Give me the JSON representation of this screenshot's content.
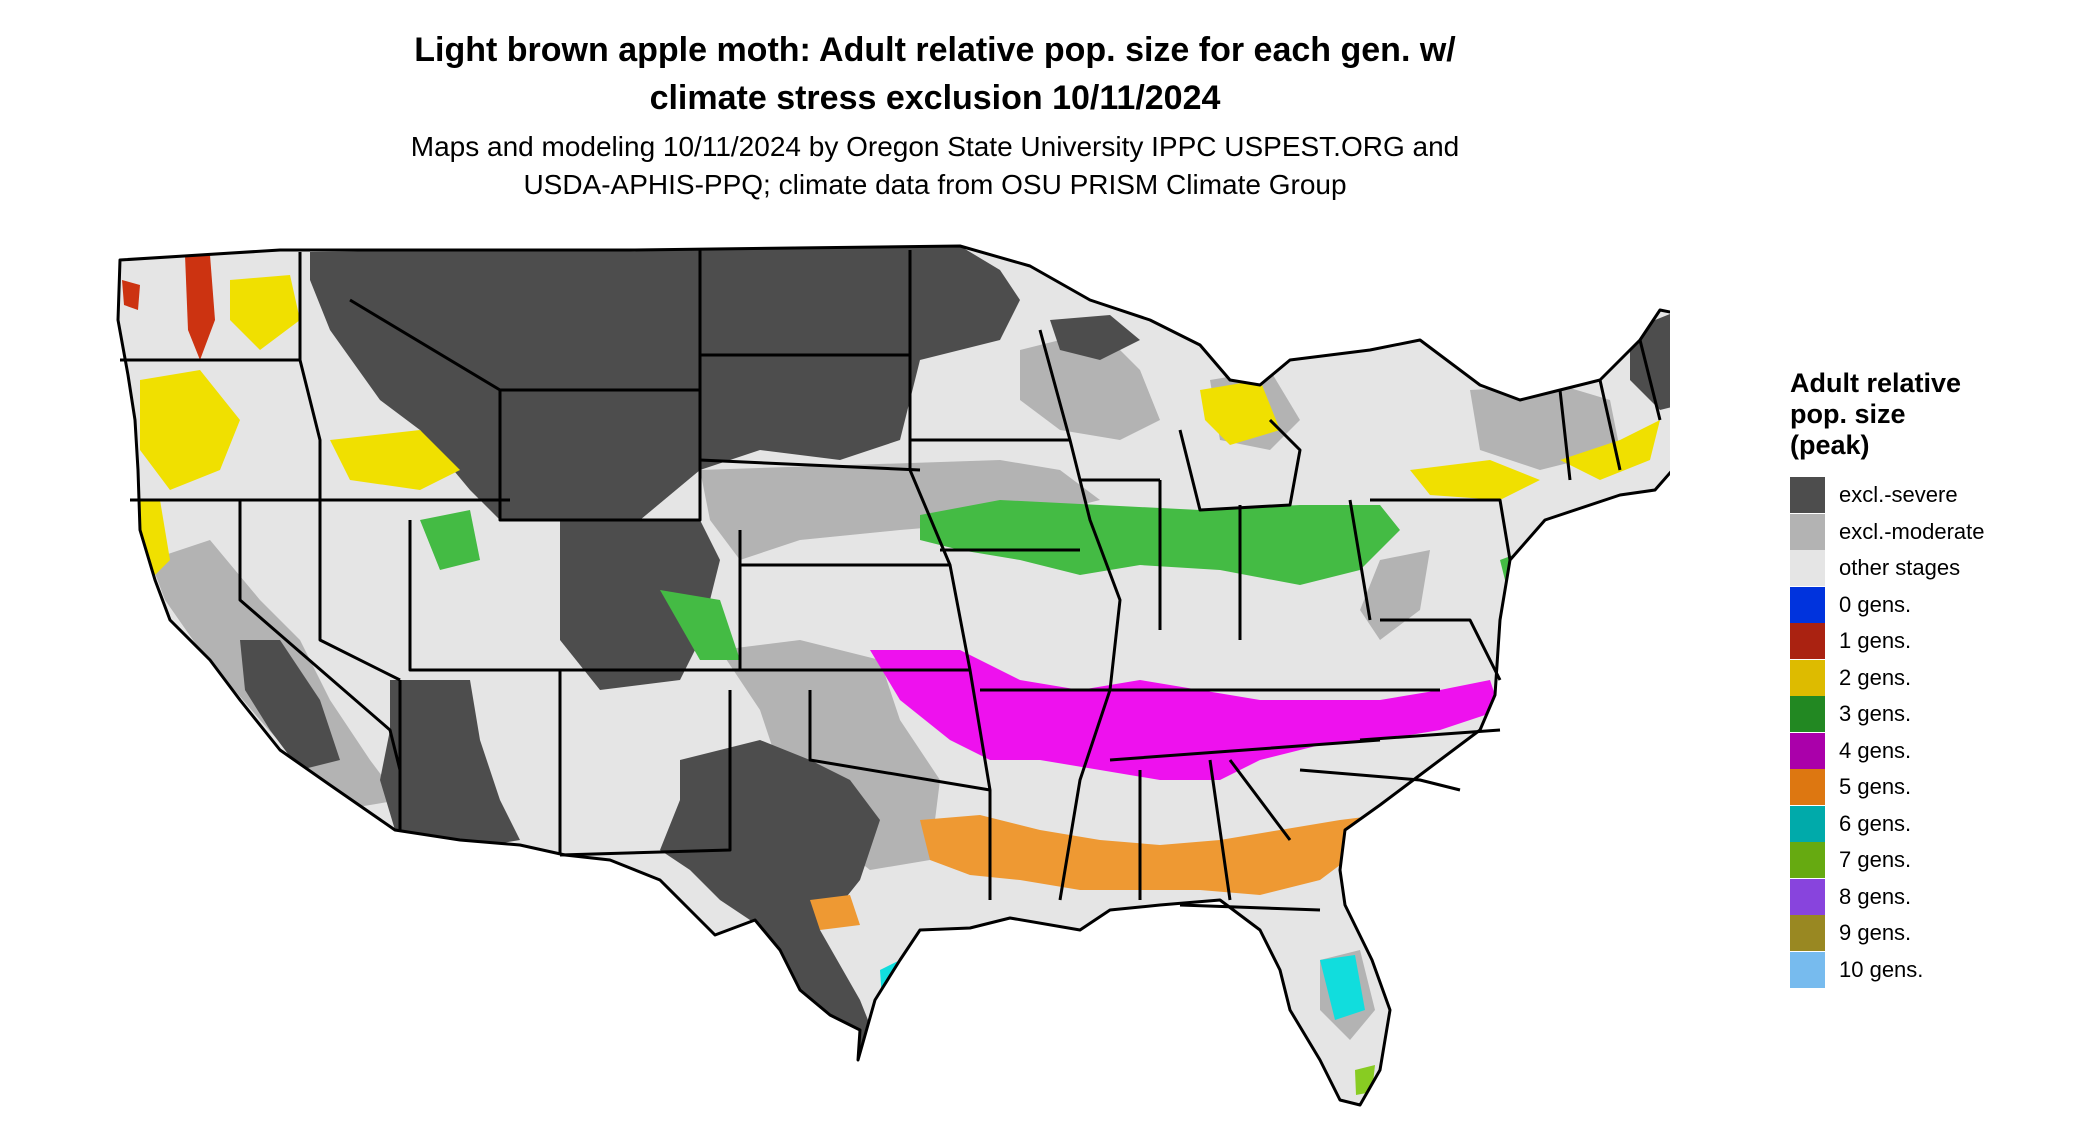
{
  "title": {
    "line1": "Light brown apple moth: Adult relative pop. size for each gen. w/",
    "line2": "climate stress exclusion 10/11/2024"
  },
  "subtitle": {
    "line1": "Maps and modeling 10/11/2024 by Oregon State University IPPC USPEST.ORG and",
    "line2": "USDA-APHIS-PPQ; climate data from OSU PRISM Climate Group"
  },
  "legend": {
    "title_lines": [
      "Adult relative",
      "pop. size",
      "(peak)"
    ],
    "items": [
      {
        "label": "excl.-severe",
        "color": "#4d4d4d"
      },
      {
        "label": "excl.-moderate",
        "color": "#b3b3b3"
      },
      {
        "label": "other stages",
        "color": "#e5e5e5"
      },
      {
        "label": "0 gens.",
        "color": "#0033dd"
      },
      {
        "label": "1 gens.",
        "color": "#aa2211"
      },
      {
        "label": "2 gens.",
        "color": "#ddbb00"
      },
      {
        "label": "3 gens.",
        "color": "#228822"
      },
      {
        "label": "4 gens.",
        "color": "#aa00aa"
      },
      {
        "label": "5 gens.",
        "color": "#dd7711"
      },
      {
        "label": "6 gens.",
        "color": "#00aaaa"
      },
      {
        "label": "7 gens.",
        "color": "#66aa11"
      },
      {
        "label": "8 gens.",
        "color": "#8844dd"
      },
      {
        "label": "9 gens.",
        "color": "#998822"
      },
      {
        "label": "10 gens.",
        "color": "#77bbee"
      }
    ]
  },
  "map": {
    "colors": {
      "excl_severe": "#4d4d4d",
      "excl_moderate": "#b3b3b3",
      "other_stages": "#e5e5e5",
      "gens_1": "#cc3311",
      "gens_2": "#f0e000",
      "gens_3": "#44bb44",
      "gens_4": "#ee11ee",
      "gens_5": "#ee9933",
      "gens_6": "#11dddd",
      "gens_7": "#88cc22",
      "borders": "#000000"
    }
  }
}
